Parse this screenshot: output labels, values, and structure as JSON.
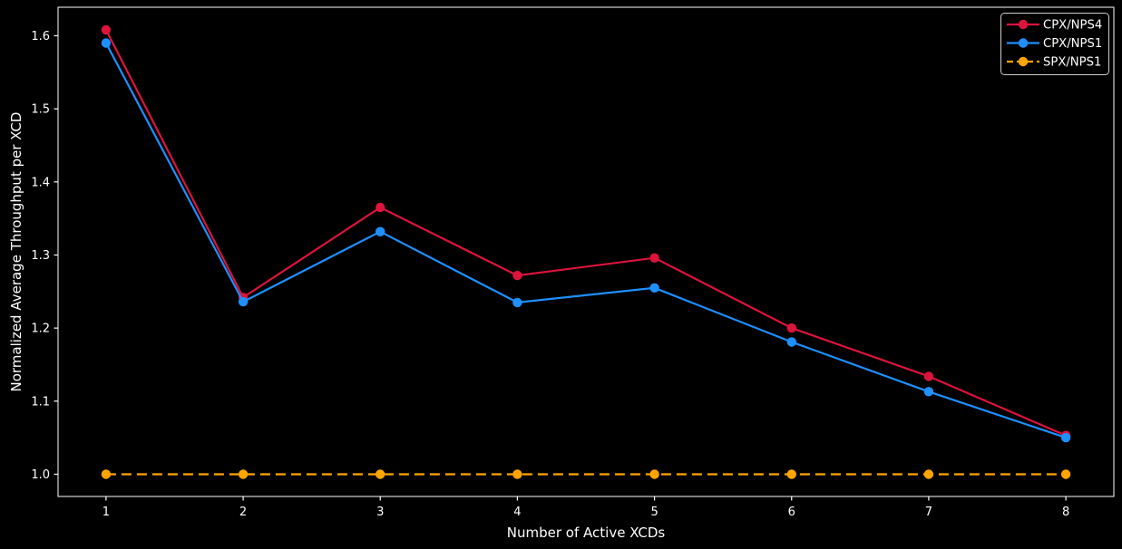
{
  "chart_data": {
    "type": "line",
    "title": "",
    "xlabel": "Number of Active XCDs",
    "ylabel": "Normalized Average Throughput per XCD",
    "x": [
      1,
      2,
      3,
      4,
      5,
      6,
      7,
      8
    ],
    "xticks": [
      "1",
      "2",
      "3",
      "4",
      "5",
      "6",
      "7",
      "8"
    ],
    "yticks": [
      "1.0",
      "1.1",
      "1.2",
      "1.3",
      "1.4",
      "1.5",
      "1.6"
    ],
    "ytick_values": [
      1.0,
      1.1,
      1.2,
      1.3,
      1.4,
      1.5,
      1.6
    ],
    "xlim": [
      0.65,
      8.35
    ],
    "ylim": [
      0.9696,
      1.639
    ],
    "grid": false,
    "legend_position": "upper right",
    "background_color": "#000000",
    "foreground_color": "#ffffff",
    "legend_border_color": "#cccccc",
    "series": [
      {
        "name": "CPX/NPS4",
        "color": "#DC143C",
        "line_style": "solid",
        "marker": "circle",
        "values": [
          1.608,
          1.242,
          1.365,
          1.272,
          1.296,
          1.2,
          1.134,
          1.053
        ]
      },
      {
        "name": "CPX/NPS1",
        "color": "#1E90FF",
        "line_style": "solid",
        "marker": "circle",
        "values": [
          1.59,
          1.236,
          1.332,
          1.235,
          1.255,
          1.181,
          1.113,
          1.05
        ]
      },
      {
        "name": "SPX/NPS1",
        "color": "#FFA500",
        "line_style": "dashed",
        "marker": "circle",
        "values": [
          1.0,
          1.0,
          1.0,
          1.0,
          1.0,
          1.0,
          1.0,
          1.0
        ]
      }
    ]
  }
}
